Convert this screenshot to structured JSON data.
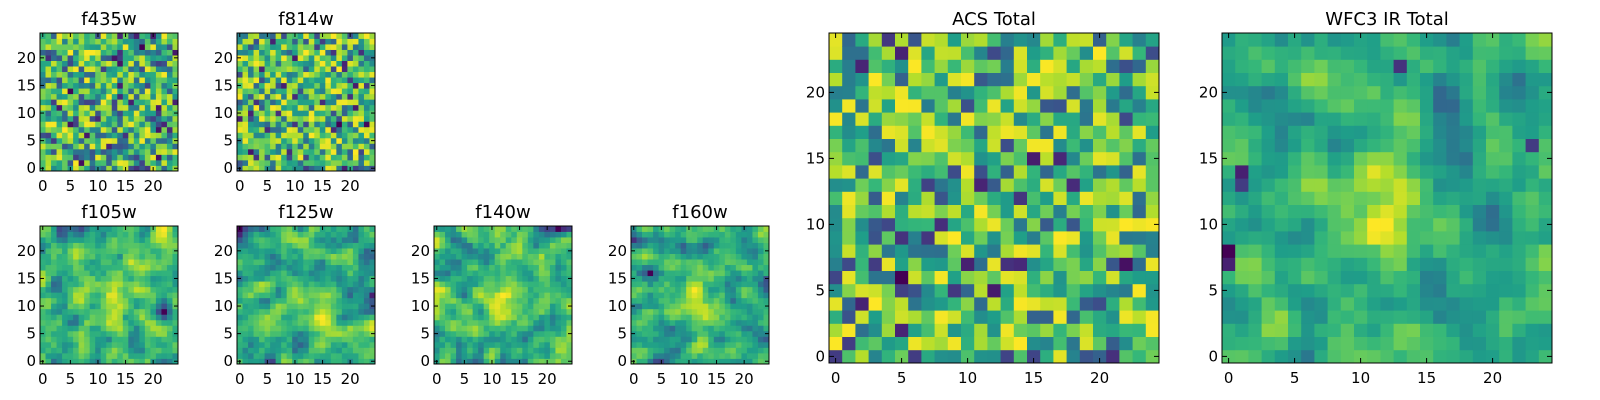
{
  "figure": {
    "colormap": "viridis",
    "colors": {
      "axes_frame": "#000000",
      "background": "#ffffff",
      "cmap_low": "#440154",
      "cmap_mid": "#21918c",
      "cmap_high": "#fde725"
    }
  },
  "chart_data": [
    {
      "type": "heatmap",
      "title": "f435w",
      "grid": false,
      "colormap": "viridis",
      "pixels": 25,
      "x_ticks": [
        "0",
        "5",
        "10",
        "15",
        "20"
      ],
      "y_ticks": [
        "0",
        "5",
        "10",
        "15",
        "20"
      ],
      "xlim": [
        -0.5,
        24.5
      ],
      "ylim": [
        -0.5,
        24.5
      ],
      "value_range": [
        0,
        1
      ],
      "note_values": "pixel values not labeled; pattern is uncorrelated noise with mostly mid-high values and scattered dark pixels"
    },
    {
      "type": "heatmap",
      "title": "f814w",
      "grid": false,
      "colormap": "viridis",
      "pixels": 25,
      "x_ticks": [
        "0",
        "5",
        "10",
        "15",
        "20"
      ],
      "y_ticks": [
        "0",
        "5",
        "10",
        "15",
        "20"
      ],
      "xlim": [
        -0.5,
        24.5
      ],
      "ylim": [
        -0.5,
        24.5
      ],
      "value_range": [
        0,
        1
      ]
    },
    {
      "type": "heatmap",
      "title": "f105w",
      "grid": false,
      "colormap": "viridis",
      "pixels": 25,
      "x_ticks": [
        "0",
        "5",
        "10",
        "15",
        "20"
      ],
      "y_ticks": [
        "0",
        "5",
        "10",
        "15",
        "20"
      ],
      "xlim": [
        -0.5,
        24.5
      ],
      "ylim": [
        -0.5,
        24.5
      ],
      "value_range": [
        0,
        1
      ]
    },
    {
      "type": "heatmap",
      "title": "f125w",
      "grid": false,
      "colormap": "viridis",
      "pixels": 25,
      "x_ticks": [
        "0",
        "5",
        "10",
        "15",
        "20"
      ],
      "y_ticks": [
        "0",
        "5",
        "10",
        "15",
        "20"
      ],
      "xlim": [
        -0.5,
        24.5
      ],
      "ylim": [
        -0.5,
        24.5
      ],
      "value_range": [
        0,
        1
      ]
    },
    {
      "type": "heatmap",
      "title": "f140w",
      "grid": false,
      "colormap": "viridis",
      "pixels": 25,
      "x_ticks": [
        "0",
        "5",
        "10",
        "15",
        "20"
      ],
      "y_ticks": [
        "0",
        "5",
        "10",
        "15",
        "20"
      ],
      "xlim": [
        -0.5,
        24.5
      ],
      "ylim": [
        -0.5,
        24.5
      ],
      "value_range": [
        0,
        1
      ]
    },
    {
      "type": "heatmap",
      "title": "f160w",
      "grid": false,
      "colormap": "viridis",
      "pixels": 25,
      "x_ticks": [
        "0",
        "5",
        "10",
        "15",
        "20"
      ],
      "y_ticks": [
        "0",
        "5",
        "10",
        "15",
        "20"
      ],
      "xlim": [
        -0.5,
        24.5
      ],
      "ylim": [
        -0.5,
        24.5
      ],
      "value_range": [
        0,
        1
      ]
    },
    {
      "type": "heatmap",
      "title": "ACS Total",
      "grid": false,
      "colormap": "viridis",
      "pixels": 25,
      "x_ticks": [
        "0",
        "5",
        "10",
        "15",
        "20"
      ],
      "y_ticks": [
        "0",
        "5",
        "10",
        "15",
        "20"
      ],
      "xlim": [
        -0.5,
        24.5
      ],
      "ylim": [
        -0.5,
        24.5
      ],
      "value_range": [
        0,
        1
      ]
    },
    {
      "type": "heatmap",
      "title": "WFC3 IR Total",
      "grid": false,
      "colormap": "viridis",
      "pixels": 25,
      "x_ticks": [
        "0",
        "5",
        "10",
        "15",
        "20"
      ],
      "y_ticks": [
        "0",
        "5",
        "10",
        "15",
        "20"
      ],
      "xlim": [
        -0.5,
        24.5
      ],
      "ylim": [
        -0.5,
        24.5
      ],
      "value_range": [
        0,
        1
      ],
      "note_values": "bright blob near center (x≈12, y≈12), dark pixels near left edge around y≈8 and y≈14"
    }
  ]
}
